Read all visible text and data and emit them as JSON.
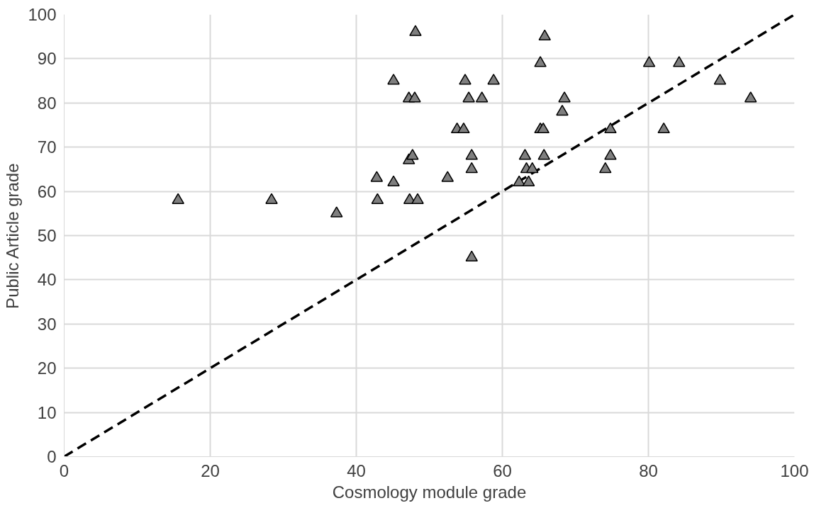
{
  "chart_data": {
    "type": "scatter",
    "xlabel": "Cosmology module grade",
    "ylabel": "Public Article grade",
    "xlim": [
      0,
      100
    ],
    "ylim": [
      0,
      100
    ],
    "xticks": [
      0,
      20,
      40,
      60,
      80,
      100
    ],
    "yticks": [
      0,
      10,
      20,
      30,
      40,
      50,
      60,
      70,
      80,
      90,
      100
    ],
    "grid": true,
    "series": [
      {
        "color": "#7f7f7f",
        "marker": "triangle",
        "x": [
          15.6,
          28.4,
          37.3,
          42.8,
          42.9,
          45.1,
          45.1,
          47.2,
          47.2,
          47.7,
          47.3,
          48.0,
          48.1,
          48.4,
          52.5,
          53.8,
          54.7,
          54.9,
          55.4,
          55.8,
          55.8,
          55.8,
          57.2,
          58.8,
          62.3,
          63.1,
          63.3,
          63.6,
          64.1,
          65.2,
          65.2,
          65.6,
          65.7,
          65.8,
          68.2,
          68.5,
          74.1,
          74.8,
          74.8,
          80.1,
          82.1,
          84.2,
          89.8,
          94.0
        ],
        "values": [
          58,
          58,
          55,
          63,
          58,
          62,
          85,
          81,
          67,
          68,
          58,
          81,
          96,
          58,
          63,
          74,
          74,
          85,
          81,
          68,
          65,
          45,
          81,
          85,
          62,
          68,
          65,
          62,
          65,
          74,
          89,
          74,
          68,
          95,
          78,
          81,
          65,
          74,
          68,
          89,
          74,
          89,
          85,
          81
        ]
      },
      {
        "type": "line",
        "color": "#000000",
        "line_style": "dashed",
        "x": [
          0,
          100
        ],
        "values": [
          0,
          100
        ]
      }
    ]
  }
}
